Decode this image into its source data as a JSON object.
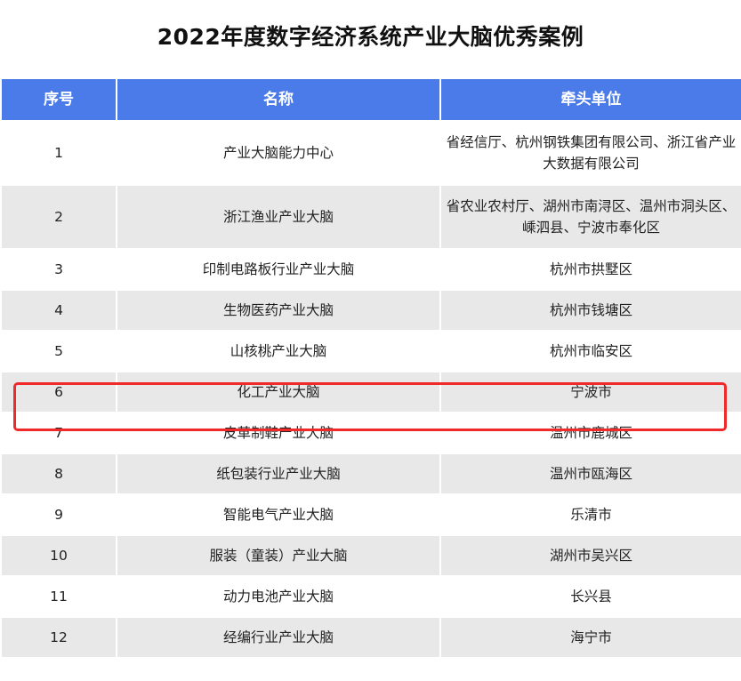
{
  "title": "2022年度数字经济系统产业大脑优秀案例",
  "table": {
    "headers": [
      "序号",
      "名称",
      "牵头单位"
    ],
    "rows": [
      {
        "no": "1",
        "name": "产业大脑能力中心",
        "lead": "省经信厅、杭州钢铁集团有限公司、浙江省产业大数据有限公司"
      },
      {
        "no": "2",
        "name": "浙江渔业产业大脑",
        "lead": "省农业农村厅、湖州市南浔区、温州市洞头区、嵊泗县、宁波市奉化区"
      },
      {
        "no": "3",
        "name": "印制电路板行业产业大脑",
        "lead": "杭州市拱墅区"
      },
      {
        "no": "4",
        "name": "生物医药产业大脑",
        "lead": "杭州市钱塘区"
      },
      {
        "no": "5",
        "name": "山核桃产业大脑",
        "lead": "杭州市临安区"
      },
      {
        "no": "6",
        "name": "化工产业大脑",
        "lead": "宁波市"
      },
      {
        "no": "7",
        "name": "皮革制鞋产业大脑",
        "lead": "温州市鹿城区"
      },
      {
        "no": "8",
        "name": "纸包装行业产业大脑",
        "lead": "温州市瓯海区"
      },
      {
        "no": "9",
        "name": "智能电气产业大脑",
        "lead": "乐清市"
      },
      {
        "no": "10",
        "name": "服装（童装）产业大脑",
        "lead": "湖州市吴兴区"
      },
      {
        "no": "11",
        "name": "动力电池产业大脑",
        "lead": "长兴县"
      },
      {
        "no": "12",
        "name": "经编行业产业大脑",
        "lead": "海宁市"
      }
    ]
  },
  "highlighted_row": "6",
  "colors": {
    "header_bg": "#4a7be8",
    "alt_row_bg": "#e8e8e8",
    "highlight_border": "#f02a2a"
  }
}
